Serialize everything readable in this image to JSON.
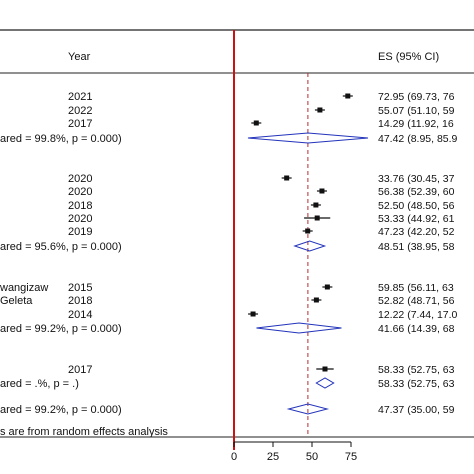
{
  "chart_data": {
    "type": "forest",
    "headers": {
      "year": "Year",
      "es": "ES (95% CI)"
    },
    "xlim": [
      0,
      75
    ],
    "xticks": [
      "0",
      "25",
      "50",
      "75"
    ],
    "overall_es": 47.37,
    "rows": [
      {
        "kind": "study",
        "label": "",
        "year": "2021",
        "es": 72.95,
        "es_text": "72.95 (69.73, 76"
      },
      {
        "kind": "study",
        "label": "",
        "year": "2022",
        "es": 55.07,
        "es_text": "55.07 (51.10, 59"
      },
      {
        "kind": "study",
        "label": "",
        "year": "2017",
        "es": 14.29,
        "es_text": "14.29 (11.92, 16"
      },
      {
        "kind": "subtotal",
        "label": "ared = 99.8%, p = 0.000)",
        "year": "",
        "es": 47.42,
        "lo": 8.95,
        "hi": 85.9,
        "es_text": "47.42 (8.95, 85.9"
      },
      {
        "kind": "study",
        "label": "",
        "year": "2020",
        "es": 33.76,
        "es_text": "33.76 (30.45, 37"
      },
      {
        "kind": "study",
        "label": "",
        "year": "2020",
        "es": 56.38,
        "es_text": "56.38 (52.39, 60"
      },
      {
        "kind": "study",
        "label": "",
        "year": "2018",
        "es": 52.5,
        "es_text": "52.50 (48.50, 56"
      },
      {
        "kind": "study",
        "label": "",
        "year": "2020",
        "es": 53.33,
        "lo": 44.92,
        "hi": 61.7,
        "es_text": "53.33 (44.92, 61"
      },
      {
        "kind": "study",
        "label": "",
        "year": "2019",
        "es": 47.23,
        "es_text": "47.23 (42.20, 52"
      },
      {
        "kind": "subtotal",
        "label": "ared = 95.6%, p = 0.000)",
        "year": "",
        "es": 48.51,
        "lo": 38.95,
        "hi": 58.1,
        "es_text": "48.51 (38.95, 58"
      },
      {
        "kind": "study",
        "label": "wangizaw",
        "year": "2015",
        "es": 59.85,
        "es_text": "59.85 (56.11, 63"
      },
      {
        "kind": "study",
        "label": "Geleta",
        "year": "2018",
        "es": 52.82,
        "es_text": "52.82 (48.71, 56"
      },
      {
        "kind": "study",
        "label": "",
        "year": "2014",
        "es": 12.22,
        "es_text": "12.22 (7.44, 17.0"
      },
      {
        "kind": "subtotal",
        "label": "ared = 99.2%, p = 0.000)",
        "year": "",
        "es": 41.66,
        "lo": 14.39,
        "hi": 68.9,
        "es_text": "41.66 (14.39, 68"
      },
      {
        "kind": "study",
        "label": "",
        "year": "2017",
        "es": 58.33,
        "lo": 52.75,
        "hi": 63.9,
        "es_text": "58.33 (52.75, 63"
      },
      {
        "kind": "subtotal",
        "label": "ared = .%, p = .)",
        "year": "",
        "es": 58.33,
        "lo": 52.75,
        "hi": 63.9,
        "es_text": "58.33 (52.75, 63"
      },
      {
        "kind": "subtotal",
        "label": "ared = 99.2%, p = 0.000)",
        "year": "",
        "es": 47.37,
        "lo": 35.0,
        "hi": 59.7,
        "es_text": "47.37 (35.00, 59"
      }
    ],
    "footnote": "s are from random effects analysis"
  }
}
